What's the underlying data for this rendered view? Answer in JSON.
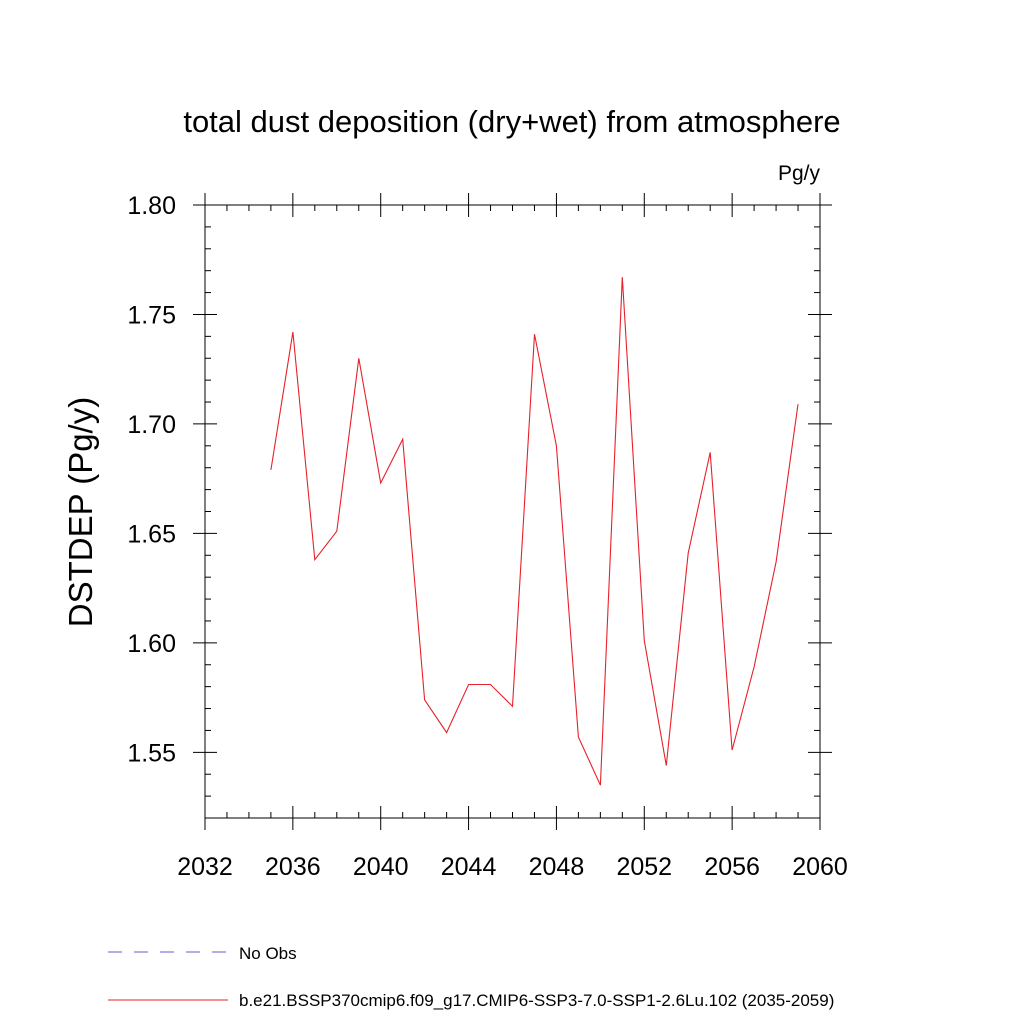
{
  "chart_data": {
    "type": "line",
    "title": "total dust deposition (dry+wet) from atmosphere",
    "units": "Pg/y",
    "ylabel": "DSTDEP  (Pg/y)",
    "xlabel": "",
    "xlim": [
      2032,
      2060
    ],
    "ylim": [
      1.52,
      1.8
    ],
    "xticks": [
      "2032",
      "2036",
      "2040",
      "2044",
      "2048",
      "2052",
      "2056",
      "2060"
    ],
    "yticks": [
      "1.55",
      "1.60",
      "1.65",
      "1.70",
      "1.75",
      "1.80"
    ],
    "series": [
      {
        "name": "b.e21.BSSP370cmip6.f09_g17.CMIP6-SSP3-7.0-SSP1-2.6Lu.102 (2035-2059)",
        "color": "#e8202a",
        "x": [
          2035,
          2036,
          2037,
          2038,
          2039,
          2040,
          2041,
          2042,
          2043,
          2044,
          2045,
          2046,
          2047,
          2048,
          2049,
          2050,
          2051,
          2052,
          2053,
          2054,
          2055,
          2056,
          2057,
          2058,
          2059
        ],
        "values": [
          1.679,
          1.742,
          1.638,
          1.651,
          1.73,
          1.673,
          1.693,
          1.574,
          1.559,
          1.581,
          1.581,
          1.571,
          1.741,
          1.69,
          1.557,
          1.535,
          1.767,
          1.601,
          1.544,
          1.641,
          1.687,
          1.551,
          1.589,
          1.637,
          1.709
        ]
      }
    ],
    "legend": [
      {
        "label": "No Obs",
        "color": "#6a5acd",
        "style": "dashed"
      },
      {
        "label": "b.e21.BSSP370cmip6.f09_g17.CMIP6-SSP3-7.0-SSP1-2.6Lu.102 (2035-2059)",
        "color": "#e8202a",
        "style": "solid"
      }
    ]
  }
}
